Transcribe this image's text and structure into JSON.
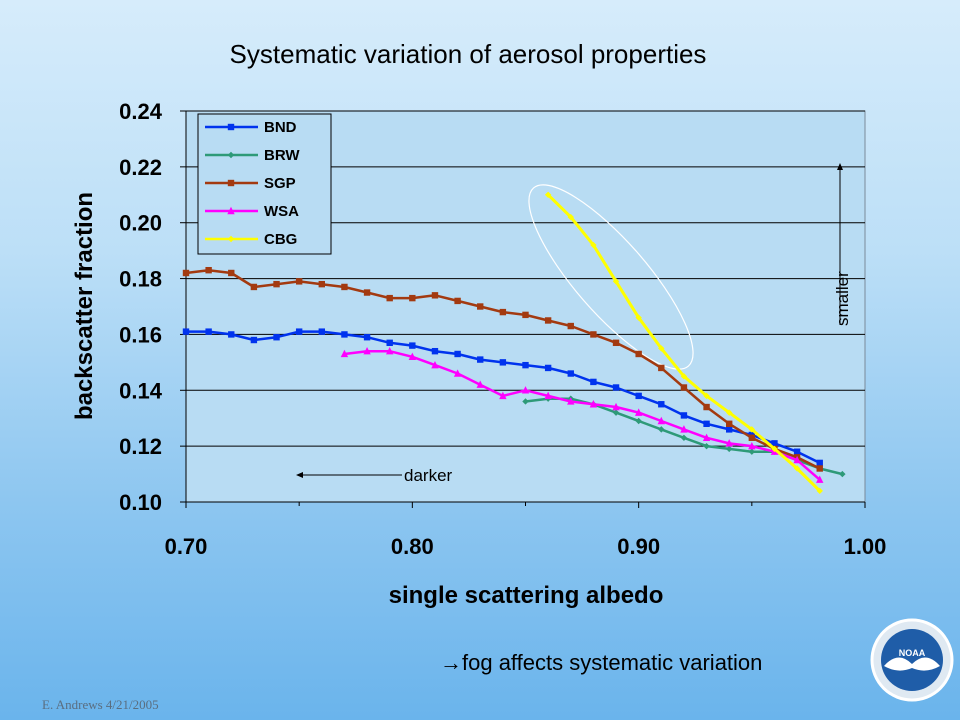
{
  "slide": {
    "title": "Systematic variation of aerosol properties",
    "note": "→fog affects systematic variation",
    "footer": "E. Andrews  4/21/2005",
    "logo_text": "NOAA"
  },
  "chart_data": {
    "type": "line",
    "title": "Systematic variation of aerosol properties",
    "xlabel": "single scattering albedo",
    "ylabel": "backscatter fraction",
    "xlim": [
      0.7,
      1.0
    ],
    "ylim": [
      0.1,
      0.24
    ],
    "xticks": [
      "0.70",
      "0.80",
      "0.90",
      "1.00"
    ],
    "yticks": [
      "0.10",
      "0.12",
      "0.14",
      "0.16",
      "0.18",
      "0.20",
      "0.22",
      "0.24"
    ],
    "grid": "horizontal",
    "legend_position": "top-left",
    "series": [
      {
        "name": "BND",
        "color": "#0033ee",
        "marker": "square",
        "x": [
          0.7,
          0.71,
          0.72,
          0.73,
          0.74,
          0.75,
          0.76,
          0.77,
          0.78,
          0.79,
          0.8,
          0.81,
          0.82,
          0.83,
          0.84,
          0.85,
          0.86,
          0.87,
          0.88,
          0.89,
          0.9,
          0.91,
          0.92,
          0.93,
          0.94,
          0.95,
          0.96,
          0.97,
          0.98
        ],
        "y": [
          0.161,
          0.161,
          0.16,
          0.158,
          0.159,
          0.161,
          0.161,
          0.16,
          0.159,
          0.157,
          0.156,
          0.154,
          0.153,
          0.151,
          0.15,
          0.149,
          0.148,
          0.146,
          0.143,
          0.141,
          0.138,
          0.135,
          0.131,
          0.128,
          0.126,
          0.124,
          0.121,
          0.118,
          0.114
        ]
      },
      {
        "name": "BRW",
        "color": "#2e9a78",
        "marker": "diamond",
        "x": [
          0.85,
          0.86,
          0.87,
          0.88,
          0.89,
          0.9,
          0.91,
          0.92,
          0.93,
          0.94,
          0.95,
          0.96,
          0.97,
          0.98,
          0.99
        ],
        "y": [
          0.136,
          0.137,
          0.137,
          0.135,
          0.132,
          0.129,
          0.126,
          0.123,
          0.12,
          0.119,
          0.118,
          0.118,
          0.115,
          0.112,
          0.11
        ]
      },
      {
        "name": "SGP",
        "color": "#a33a10",
        "marker": "square",
        "x": [
          0.7,
          0.71,
          0.72,
          0.73,
          0.74,
          0.75,
          0.76,
          0.77,
          0.78,
          0.79,
          0.8,
          0.81,
          0.82,
          0.83,
          0.84,
          0.85,
          0.86,
          0.87,
          0.88,
          0.89,
          0.9,
          0.91,
          0.92,
          0.93,
          0.94,
          0.95,
          0.96,
          0.97,
          0.98
        ],
        "y": [
          0.182,
          0.183,
          0.182,
          0.177,
          0.178,
          0.179,
          0.178,
          0.177,
          0.175,
          0.173,
          0.173,
          0.174,
          0.172,
          0.17,
          0.168,
          0.167,
          0.165,
          0.163,
          0.16,
          0.157,
          0.153,
          0.148,
          0.141,
          0.134,
          0.128,
          0.123,
          0.119,
          0.116,
          0.112
        ]
      },
      {
        "name": "WSA",
        "color": "#ff00ff",
        "marker": "triangle",
        "x": [
          0.77,
          0.78,
          0.79,
          0.8,
          0.81,
          0.82,
          0.83,
          0.84,
          0.85,
          0.86,
          0.87,
          0.88,
          0.89,
          0.9,
          0.91,
          0.92,
          0.93,
          0.94,
          0.95,
          0.96,
          0.97,
          0.98
        ],
        "y": [
          0.153,
          0.154,
          0.154,
          0.152,
          0.149,
          0.146,
          0.142,
          0.138,
          0.14,
          0.138,
          0.136,
          0.135,
          0.134,
          0.132,
          0.129,
          0.126,
          0.123,
          0.121,
          0.12,
          0.118,
          0.115,
          0.108
        ]
      },
      {
        "name": "CBG",
        "color": "#ffff00",
        "marker": "diamond",
        "x": [
          0.86,
          0.87,
          0.88,
          0.89,
          0.9,
          0.91,
          0.92,
          0.93,
          0.94,
          0.95,
          0.96,
          0.97,
          0.98
        ],
        "y": [
          0.21,
          0.202,
          0.192,
          0.179,
          0.166,
          0.155,
          0.145,
          0.138,
          0.132,
          0.126,
          0.119,
          0.112,
          0.104
        ]
      }
    ],
    "annotations": {
      "darker": "darker",
      "smaller": "smaller"
    }
  }
}
